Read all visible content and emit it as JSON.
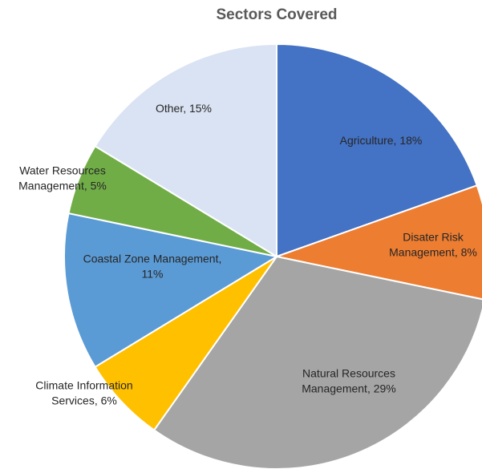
{
  "chart_data": {
    "type": "pie",
    "title": "Sectors Covered",
    "start_angle_deg": 0,
    "direction": "clockwise",
    "slices": [
      {
        "label": "Agriculture",
        "value": 18,
        "label_text": "Agriculture, 18%",
        "color": "#4472C4"
      },
      {
        "label": "Disater Risk Management",
        "value": 8,
        "label_text": "Disater Risk Management, 8%",
        "color": "#ED7D31"
      },
      {
        "label": "Natural Resources Management",
        "value": 29,
        "label_text": "Natural Resources Management, 29%",
        "color": "#A5A5A5"
      },
      {
        "label": "Climate Information Services",
        "value": 6,
        "label_text": "Climate Information Services, 6%",
        "color": "#FFC000"
      },
      {
        "label": "Coastal Zone Management",
        "value": 11,
        "label_text": "Coastal Zone Management, 11%",
        "color": "#5B9BD5"
      },
      {
        "label": "Water Resources Management",
        "value": 5,
        "label_text": "Water Resources Management, 5%",
        "color": "#70AD47"
      },
      {
        "label": "Other",
        "value": 15,
        "label_text": "Other, 15%",
        "color": "#DAE3F3"
      }
    ]
  }
}
